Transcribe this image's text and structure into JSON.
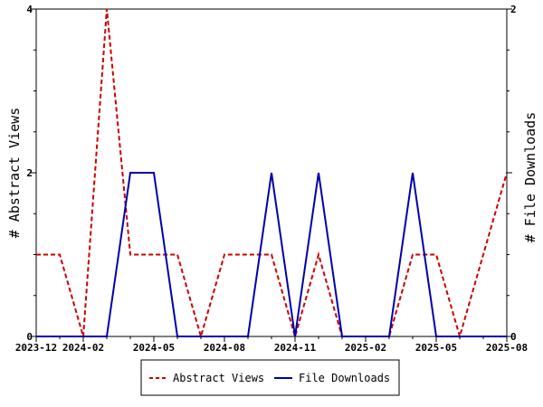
{
  "chart_data": {
    "type": "line",
    "x": [
      "2023-12",
      "2024-01",
      "2024-02",
      "2024-03",
      "2024-04",
      "2024-05",
      "2024-06",
      "2024-07",
      "2024-08",
      "2024-09",
      "2024-10",
      "2024-11",
      "2024-12",
      "2025-01",
      "2025-02",
      "2025-03",
      "2025-04",
      "2025-05",
      "2025-06",
      "2025-07",
      "2025-08"
    ],
    "x_tick_labels": [
      "2023-12",
      "2024-02",
      "2024-05",
      "2024-08",
      "2024-11",
      "2025-02",
      "2025-05",
      "2025-08"
    ],
    "series": [
      {
        "name": "Abstract Views",
        "axis": "left",
        "color": "#cc0000",
        "dash": "dashed",
        "values": [
          1,
          1,
          0,
          4,
          1,
          1,
          1,
          0,
          1,
          1,
          1,
          0,
          1,
          0,
          0,
          0,
          1,
          1,
          0,
          1,
          2
        ]
      },
      {
        "name": "File Downloads",
        "axis": "right",
        "color": "#0000aa",
        "dash": "solid",
        "values": [
          0,
          0,
          0,
          0,
          1,
          1,
          0,
          0,
          0,
          0,
          1,
          0,
          1,
          0,
          0,
          0,
          1,
          0,
          0,
          0,
          0
        ]
      }
    ],
    "ylabel": "# Abstract Views",
    "y2label": "# File Downloads",
    "ylim": [
      0,
      4
    ],
    "y2lim": [
      0,
      2
    ],
    "y_ticks": [
      "0",
      "2",
      "4"
    ],
    "y2_ticks": [
      "0",
      "1",
      "2"
    ],
    "grid": false,
    "legend_position": "bottom"
  }
}
